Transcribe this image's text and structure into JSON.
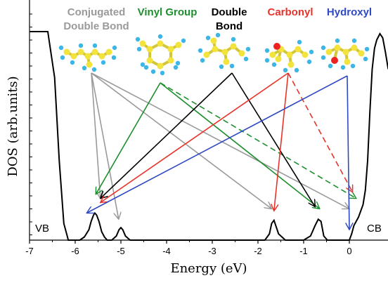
{
  "chart_data": {
    "type": "line",
    "xlabel": "Energy (eV)",
    "ylabel": "DOS (arb.units)",
    "xlim": [
      -7,
      0.85
    ],
    "xticks": [
      -7,
      -6,
      -5,
      -4,
      -3,
      -2,
      -1,
      0
    ],
    "xtick_labels": [
      "-7",
      "-6",
      "-5",
      "-4",
      "-3",
      "-2",
      "-1",
      "0"
    ],
    "band_labels": [
      "VB",
      "CB"
    ],
    "curve": {
      "x": [
        -7.0,
        -6.6,
        -6.45,
        -6.35,
        -6.25,
        -6.15,
        -6.0,
        -5.9,
        -5.8,
        -5.7,
        -5.65,
        -5.6,
        -5.57,
        -5.53,
        -5.48,
        -5.42,
        -5.36,
        -5.3,
        -5.2,
        -5.1,
        -5.04,
        -5.0,
        -4.96,
        -4.9,
        -4.8,
        -2.0,
        -1.85,
        -1.75,
        -1.7,
        -1.65,
        -1.55,
        -1.4,
        -1.0,
        -0.85,
        -0.75,
        -0.68,
        -0.62,
        -0.56,
        -0.48,
        -0.3,
        -0.1,
        0.0,
        0.05,
        0.1,
        0.2,
        0.3,
        0.35,
        0.4,
        0.45,
        0.5,
        0.55,
        0.6,
        0.67,
        0.73,
        0.79,
        0.85
      ],
      "y": [
        1.0,
        1.0,
        0.78,
        0.38,
        0.08,
        0.0,
        0.0,
        0.0,
        0.015,
        0.05,
        0.09,
        0.12,
        0.13,
        0.12,
        0.09,
        0.04,
        0.015,
        0.0,
        0.0,
        0.02,
        0.05,
        0.06,
        0.05,
        0.02,
        0.0,
        0.0,
        0.0,
        0.03,
        0.08,
        0.095,
        0.03,
        0.0,
        0.0,
        0.02,
        0.07,
        0.1,
        0.09,
        0.02,
        0.0,
        0.0,
        0.0,
        0.0,
        0.03,
        0.07,
        0.11,
        0.17,
        0.24,
        0.38,
        0.62,
        0.82,
        0.92,
        0.96,
        0.99,
        0.97,
        0.9,
        0.82
      ]
    },
    "groups": [
      {
        "label": [
          "Conjugated",
          "Double Bond"
        ],
        "color": "#9a9a9a"
      },
      {
        "label": [
          "Vinyl Group"
        ],
        "color": "#1e8f2e"
      },
      {
        "label": [
          "Double",
          "Bond"
        ],
        "color": "#000000"
      },
      {
        "label": [
          "Carbonyl"
        ],
        "color": "#e8332a"
      },
      {
        "label": [
          "Hydroxyl"
        ],
        "color": "#2f49c2"
      }
    ],
    "arrows": [
      {
        "group": 0,
        "to_x": -5.45,
        "to_y": 0.2,
        "dashed": false
      },
      {
        "group": 0,
        "to_x": -5.05,
        "to_y": 0.1,
        "dashed": false
      },
      {
        "group": 0,
        "to_x": -1.7,
        "to_y": 0.15,
        "dashed": false
      },
      {
        "group": 0,
        "to_x": 0.0,
        "to_y": 0.15,
        "dashed": false
      },
      {
        "group": 1,
        "to_x": -5.55,
        "to_y": 0.22,
        "dashed": false
      },
      {
        "group": 1,
        "to_x": -0.65,
        "to_y": 0.15,
        "dashed": false
      },
      {
        "group": 1,
        "to_x": 0.15,
        "to_y": 0.2,
        "dashed": true
      },
      {
        "group": 2,
        "to_x": -5.45,
        "to_y": 0.2,
        "dashed": false
      },
      {
        "group": 2,
        "to_x": -0.75,
        "to_y": 0.16,
        "dashed": false
      },
      {
        "group": 3,
        "to_x": -5.45,
        "to_y": 0.18,
        "dashed": false
      },
      {
        "group": 3,
        "to_x": -1.65,
        "to_y": 0.14,
        "dashed": false
      },
      {
        "group": 3,
        "to_x": 0.07,
        "to_y": 0.23,
        "dashed": true
      },
      {
        "group": 4,
        "to_x": -5.75,
        "to_y": 0.13,
        "dashed": false
      },
      {
        "group": 4,
        "to_x": 0.0,
        "to_y": 0.05,
        "dashed": false
      }
    ]
  }
}
